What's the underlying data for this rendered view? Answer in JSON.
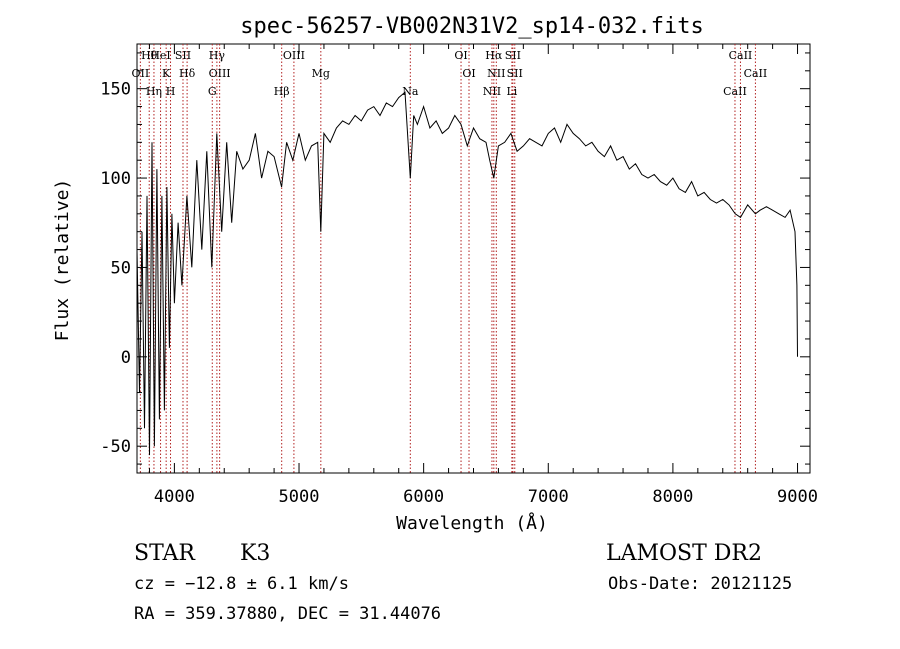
{
  "chart_data": {
    "type": "line",
    "title": "spec-56257-VB002N31V2_sp14-032.fits",
    "xlabel": "Wavelength (Å)",
    "ylabel": "Flux (relative)",
    "xlim": [
      3700,
      9100
    ],
    "ylim": [
      -65,
      175
    ],
    "xticks": [
      4000,
      5000,
      6000,
      7000,
      8000,
      9000
    ],
    "yticks": [
      -50,
      0,
      50,
      100,
      150
    ],
    "grid": false,
    "series": [
      {
        "x": [
          3700,
          3720,
          3740,
          3760,
          3780,
          3800,
          3820,
          3840,
          3860,
          3880,
          3900,
          3920,
          3940,
          3960,
          3980,
          4000,
          4030,
          4060,
          4100,
          4140,
          4180,
          4220,
          4260,
          4300,
          4340,
          4380,
          4420,
          4460,
          4500,
          4550,
          4600,
          4650,
          4700,
          4750,
          4800,
          4860,
          4900,
          4950,
          5000,
          5050,
          5100,
          5150,
          5175,
          5200,
          5250,
          5300,
          5350,
          5400,
          5450,
          5500,
          5550,
          5600,
          5650,
          5700,
          5750,
          5800,
          5850,
          5893,
          5920,
          5950,
          6000,
          6050,
          6100,
          6150,
          6200,
          6250,
          6300,
          6350,
          6400,
          6450,
          6500,
          6530,
          6563,
          6600,
          6650,
          6700,
          6750,
          6800,
          6850,
          6900,
          6950,
          7000,
          7050,
          7100,
          7150,
          7200,
          7250,
          7300,
          7350,
          7400,
          7450,
          7500,
          7550,
          7600,
          7650,
          7700,
          7750,
          7800,
          7850,
          7900,
          7950,
          8000,
          8050,
          8100,
          8150,
          8200,
          8250,
          8300,
          8350,
          8400,
          8450,
          8500,
          8542,
          8600,
          8662,
          8700,
          8750,
          8800,
          8850,
          8900,
          8940,
          8980,
          8995,
          9000
        ],
        "y": [
          60,
          -20,
          70,
          -40,
          90,
          -55,
          120,
          -50,
          105,
          -35,
          90,
          -30,
          95,
          5,
          80,
          30,
          75,
          40,
          90,
          50,
          110,
          60,
          115,
          50,
          125,
          70,
          120,
          75,
          115,
          105,
          110,
          125,
          100,
          115,
          112,
          95,
          120,
          110,
          125,
          110,
          118,
          120,
          70,
          125,
          120,
          128,
          132,
          130,
          135,
          132,
          138,
          140,
          135,
          142,
          140,
          145,
          148,
          100,
          135,
          130,
          140,
          128,
          132,
          125,
          128,
          135,
          130,
          118,
          128,
          122,
          120,
          110,
          100,
          118,
          120,
          125,
          115,
          118,
          122,
          120,
          118,
          125,
          128,
          120,
          130,
          125,
          122,
          118,
          120,
          115,
          112,
          118,
          110,
          112,
          105,
          108,
          102,
          100,
          102,
          98,
          96,
          100,
          94,
          92,
          98,
          90,
          92,
          88,
          86,
          88,
          85,
          80,
          78,
          85,
          80,
          82,
          84,
          82,
          80,
          78,
          82,
          70,
          40,
          0
        ]
      }
    ],
    "lines": [
      {
        "label": "Hθ",
        "x": 3798
      },
      {
        "label": "OII",
        "x": 3727
      },
      {
        "label": "Hη",
        "x": 3836
      },
      {
        "label": "HeI",
        "x": 3889
      },
      {
        "label": "K",
        "x": 3934
      },
      {
        "label": "H",
        "x": 3969
      },
      {
        "label": "SII",
        "x": 4069
      },
      {
        "label": "Hδ",
        "x": 4102
      },
      {
        "label": "G",
        "x": 4304
      },
      {
        "label": "Hγ",
        "x": 4341
      },
      {
        "label": "OIII",
        "x": 4363
      },
      {
        "label": "Hβ",
        "x": 4861
      },
      {
        "label": "OIII",
        "x": 4959
      },
      {
        "label": "Mg",
        "x": 5175
      },
      {
        "label": "Na",
        "x": 5893
      },
      {
        "label": "OI",
        "x": 6300
      },
      {
        "label": "OI",
        "x": 6364
      },
      {
        "label": "NII",
        "x": 6548
      },
      {
        "label": "Hα",
        "x": 6563
      },
      {
        "label": "NII",
        "x": 6583
      },
      {
        "label": "Li",
        "x": 6708
      },
      {
        "label": "SII",
        "x": 6716
      },
      {
        "label": "SII",
        "x": 6731
      },
      {
        "label": "CaII",
        "x": 8498
      },
      {
        "label": "CaII",
        "x": 8542
      },
      {
        "label": "CaII",
        "x": 8662
      }
    ]
  },
  "footer": {
    "object": "STAR",
    "subclass": "K3",
    "survey": "LAMOST DR2",
    "cz": "cz = −12.8 ± 6.1 km/s",
    "obs_date": "Obs-Date: 20121125",
    "coords": "RA = 359.37880, DEC =  31.44076"
  },
  "colors": {
    "spectrum": "#000000",
    "line_markers": "#b22222",
    "axes": "#000000"
  }
}
